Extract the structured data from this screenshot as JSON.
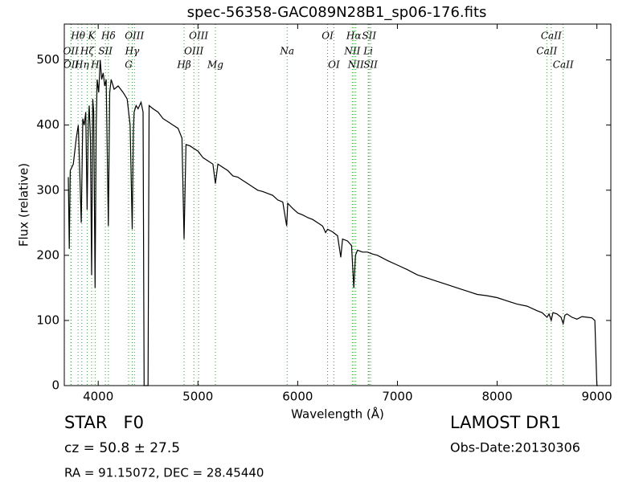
{
  "chart_data": {
    "type": "line",
    "title": "spec-56358-GAC089N28B1_sp06-176.fits",
    "x_label": "Wavelength (Å)",
    "y_label": "Flux (relative)",
    "color": "#000000",
    "line_color": "#2ca02c",
    "xlim": [
      3660,
      9140
    ],
    "ylim": [
      0,
      555
    ],
    "xticks": [
      4000,
      5000,
      6000,
      7000,
      8000,
      9000
    ],
    "yticks": [
      0,
      100,
      200,
      300,
      400,
      500
    ],
    "x": [
      3700,
      3710,
      3720,
      3750,
      3780,
      3800,
      3815,
      3830,
      3845,
      3860,
      3875,
      3889,
      3900,
      3910,
      3922,
      3934,
      3945,
      3955,
      3969,
      3980,
      3990,
      4005,
      4020,
      4035,
      4050,
      4065,
      4080,
      4102,
      4115,
      4130,
      4160,
      4200,
      4250,
      4290,
      4320,
      4341,
      4352,
      4360,
      4380,
      4400,
      4430,
      4450,
      4460,
      4500,
      4510,
      4550,
      4600,
      4650,
      4700,
      4750,
      4800,
      4840,
      4861,
      4880,
      4920,
      4950,
      5000,
      5050,
      5100,
      5150,
      5175,
      5200,
      5250,
      5300,
      5350,
      5400,
      5450,
      5500,
      5550,
      5600,
      5650,
      5700,
      5750,
      5800,
      5850,
      5890,
      5900,
      5950,
      6000,
      6050,
      6100,
      6150,
      6200,
      6250,
      6280,
      6300,
      6350,
      6400,
      6432,
      6450,
      6500,
      6540,
      6563,
      6580,
      6600,
      6650,
      6700,
      6750,
      6800,
      6900,
      7000,
      7100,
      7200,
      7300,
      7400,
      7500,
      7600,
      7700,
      7800,
      7900,
      8000,
      8100,
      8200,
      8300,
      8400,
      8450,
      8500,
      8520,
      8542,
      8560,
      8600,
      8640,
      8662,
      8680,
      8700,
      8750,
      8800,
      8850,
      8900,
      8950,
      8980,
      9000,
      9010
    ],
    "values": [
      320,
      210,
      330,
      340,
      380,
      400,
      330,
      250,
      410,
      400,
      420,
      270,
      400,
      430,
      380,
      170,
      440,
      420,
      150,
      400,
      470,
      450,
      500,
      470,
      480,
      460,
      470,
      245,
      450,
      470,
      455,
      460,
      450,
      440,
      400,
      240,
      390,
      420,
      430,
      425,
      435,
      420,
      0,
      0,
      430,
      425,
      420,
      410,
      405,
      400,
      395,
      380,
      225,
      370,
      368,
      365,
      360,
      350,
      345,
      340,
      310,
      340,
      335,
      330,
      322,
      320,
      315,
      310,
      305,
      300,
      298,
      295,
      292,
      285,
      282,
      245,
      280,
      272,
      265,
      262,
      258,
      255,
      250,
      245,
      235,
      240,
      236,
      230,
      197,
      225,
      222,
      215,
      150,
      200,
      208,
      205,
      205,
      202,
      200,
      192,
      185,
      178,
      170,
      165,
      160,
      155,
      150,
      145,
      140,
      138,
      135,
      130,
      125,
      122,
      115,
      112,
      105,
      110,
      100,
      112,
      110,
      105,
      95,
      108,
      110,
      105,
      102,
      106,
      105,
      104,
      100,
      0,
      0
    ],
    "lines": [
      {
        "wavelength": 3726,
        "label": "OII"
      },
      {
        "wavelength": 3729,
        "label": "OII"
      },
      {
        "wavelength": 3798,
        "label": "Hθ"
      },
      {
        "wavelength": 3836,
        "label": "Hη"
      },
      {
        "wavelength": 3889,
        "label": "Hζ"
      },
      {
        "wavelength": 3934,
        "label": "K"
      },
      {
        "wavelength": 3969,
        "label": "H"
      },
      {
        "wavelength": 4072,
        "label": "SII"
      },
      {
        "wavelength": 4102,
        "label": "Hδ"
      },
      {
        "wavelength": 4305,
        "label": "G"
      },
      {
        "wavelength": 4341,
        "label": "Hγ"
      },
      {
        "wavelength": 4363,
        "label": "OIII"
      },
      {
        "wavelength": 4861,
        "label": "Hβ"
      },
      {
        "wavelength": 4959,
        "label": "OIII"
      },
      {
        "wavelength": 5007,
        "label": "OIII"
      },
      {
        "wavelength": 5175,
        "label": "Mg"
      },
      {
        "wavelength": 5894,
        "label": "Na"
      },
      {
        "wavelength": 6300,
        "label": "OI"
      },
      {
        "wavelength": 6363,
        "label": "OI"
      },
      {
        "wavelength": 6548,
        "label": "NII"
      },
      {
        "wavelength": 6563,
        "label": "Hα"
      },
      {
        "wavelength": 6583,
        "label": "NII"
      },
      {
        "wavelength": 6707,
        "label": "Li"
      },
      {
        "wavelength": 6716,
        "label": "SII"
      },
      {
        "wavelength": 6731,
        "label": "SII"
      },
      {
        "wavelength": 8498,
        "label": "CaII"
      },
      {
        "wavelength": 8542,
        "label": "CaII"
      },
      {
        "wavelength": 8662,
        "label": "CaII"
      }
    ],
    "object_class": "STAR   F0",
    "redshift": "cz = 50.8 ± 27.5",
    "coordinates": "RA = 91.15072, DEC = 28.45440",
    "survey": "LAMOST DR1",
    "obs_date": "Obs-Date:20130306"
  }
}
